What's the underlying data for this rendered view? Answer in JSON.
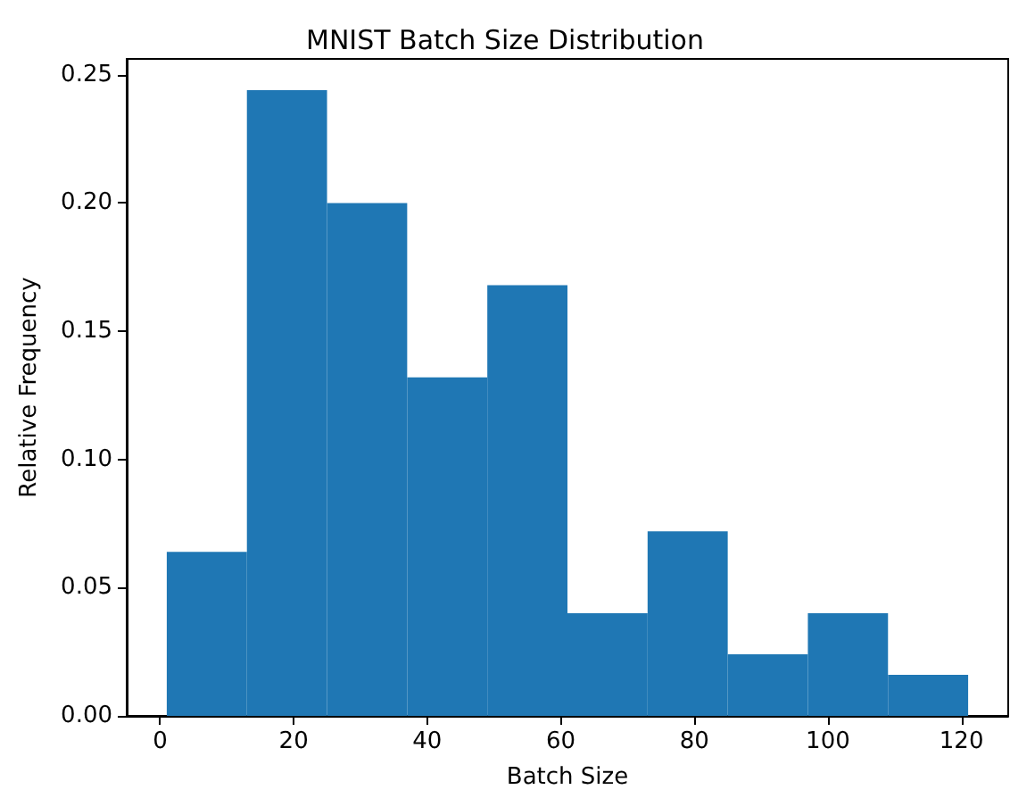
{
  "chart_data": {
    "type": "histogram",
    "title": "MNIST Batch Size Distribution",
    "xlabel": "Batch Size",
    "ylabel": "Relative Frequency",
    "bins": [
      1,
      13,
      25,
      37,
      49,
      61,
      73,
      85,
      97,
      109,
      121
    ],
    "values": [
      0.064,
      0.244,
      0.2,
      0.132,
      0.168,
      0.04,
      0.072,
      0.024,
      0.04,
      0.016
    ],
    "color": "#1f77b4",
    "xlim": [
      -5,
      127
    ],
    "xticks": [
      0,
      20,
      40,
      60,
      80,
      100,
      120
    ],
    "ylim": [
      0,
      0.2562
    ],
    "yticks": [
      {
        "value": 0,
        "label": "0.00"
      },
      {
        "value": 0.05,
        "label": "0.05"
      },
      {
        "value": 0.1,
        "label": "0.10"
      },
      {
        "value": 0.15,
        "label": "0.15"
      },
      {
        "value": 0.2,
        "label": "0.20"
      },
      {
        "value": 0.25,
        "label": "0.25"
      }
    ],
    "grid": false
  }
}
